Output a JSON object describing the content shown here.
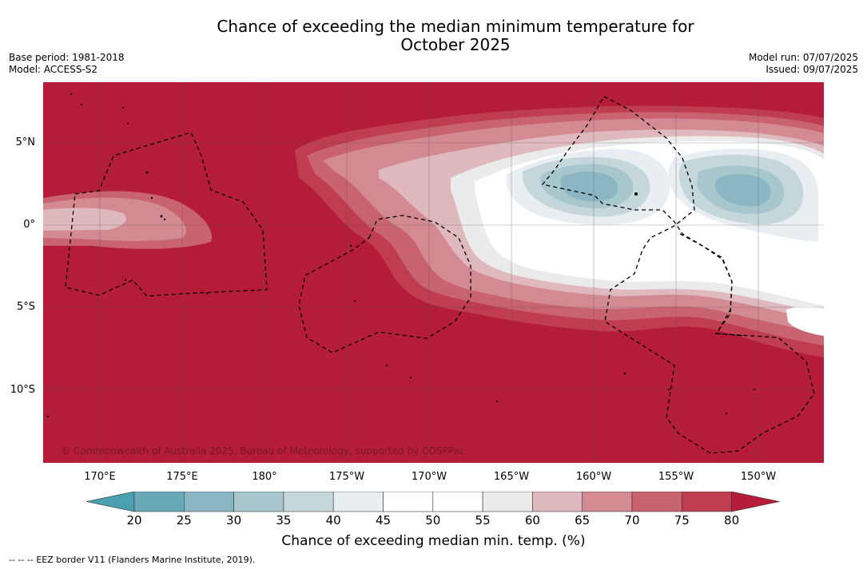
{
  "header": {
    "title_line1": "Chance of exceeding the median minimum temperature for",
    "title_line2": "October 2025",
    "base_period": "Base period: 1981-2018",
    "model": "Model: ACCESS-S2",
    "model_run": "Model run: 07/07/2025",
    "issued": "Issued: 09/07/2025"
  },
  "map": {
    "lat_labels": [
      "5°N",
      "0°",
      "5°S",
      "10°S"
    ],
    "lon_labels": [
      "170°E",
      "175°E",
      "180°",
      "175°W",
      "170°W",
      "165°W",
      "160°W",
      "155°W",
      "150°W"
    ],
    "copyright": "© Commonwealth of Australia 2025, Bureau of Meteorology, supported by COSPPac",
    "background_color": "#b41c37"
  },
  "colorbar": {
    "ticks": [
      "20",
      "25",
      "30",
      "35",
      "40",
      "45",
      "50",
      "55",
      "60",
      "65",
      "70",
      "75",
      "80"
    ],
    "colors": [
      "#6aa9b8",
      "#8ab7c3",
      "#a8c7cd",
      "#c6d7dc",
      "#e8eef1",
      "#ffffff",
      "#ffffff",
      "#ebebeb",
      "#e0b9bf",
      "#d48a93",
      "#c8636f",
      "#bf3d4f"
    ],
    "under_color": "#4aa0ae",
    "over_color": "#b41c37",
    "title": "Chance of exceeding median min. temp. (%)"
  },
  "legend": {
    "eez_symbol": "--  --  --",
    "eez_label": "EEZ border V11 (Flanders Marine Institute, 2019)."
  }
}
